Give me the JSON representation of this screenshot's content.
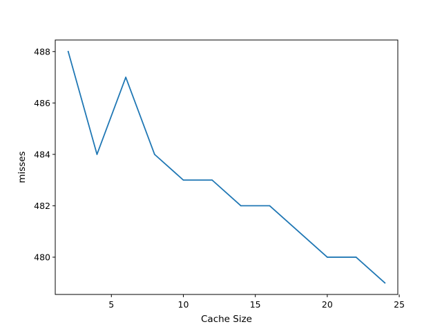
{
  "chart_data": {
    "type": "line",
    "title": "",
    "xlabel": "Cache Size",
    "ylabel": "misses",
    "xlim": [
      1.1,
      24.9
    ],
    "ylim": [
      478.55,
      488.45
    ],
    "xticks": [
      5,
      10,
      15,
      20,
      25
    ],
    "yticks": [
      480,
      482,
      484,
      486,
      488
    ],
    "grid": false,
    "series": [
      {
        "color": "#1f77b4",
        "x": [
          2,
          4,
          6,
          8,
          10,
          12,
          14,
          16,
          18,
          20,
          22,
          24
        ],
        "y": [
          488,
          484,
          487,
          484,
          483,
          483,
          482,
          482,
          481,
          480,
          480,
          479
        ]
      }
    ]
  }
}
